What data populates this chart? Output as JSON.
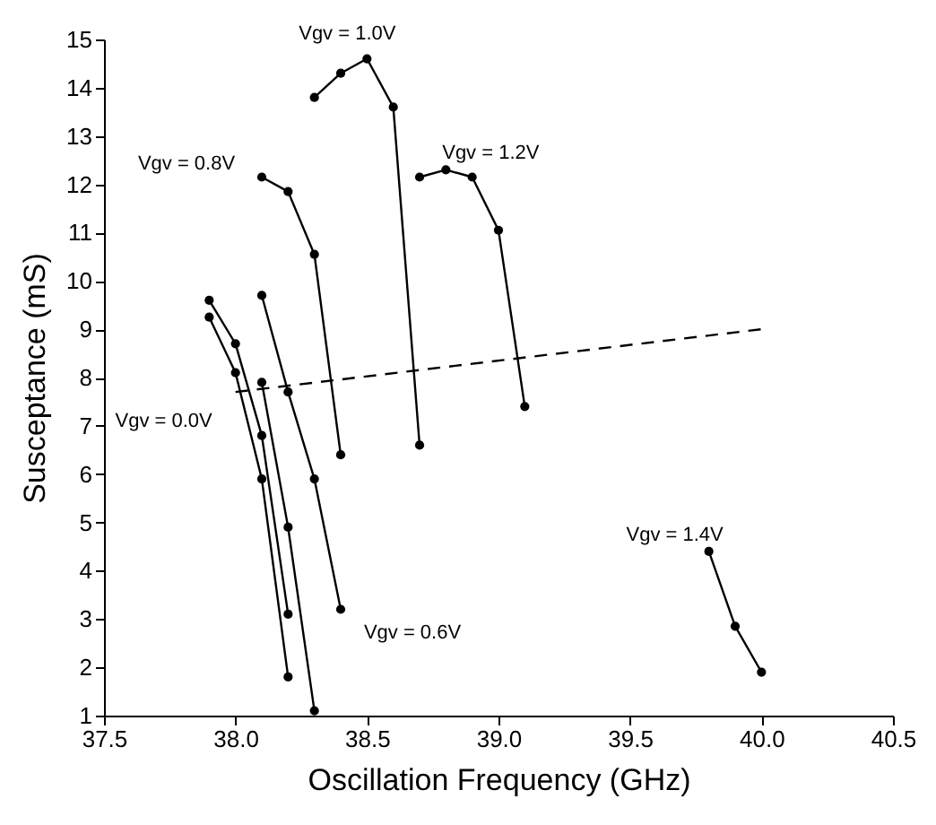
{
  "chart_data": {
    "type": "line",
    "xlabel": "Oscillation Frequency (GHz)",
    "ylabel": "Susceptance (mS)",
    "xlim": [
      37.5,
      40.5
    ],
    "xticks": [
      "37.5",
      {
        "value": 38,
        "label": "38.0"
      },
      "38.5",
      {
        "value": 39,
        "label": "39.0"
      },
      "39.5",
      {
        "value": 40,
        "label": "40.0"
      },
      "40.5"
    ],
    "ylim": [
      1,
      15
    ],
    "yticks": [
      1,
      2,
      3,
      4,
      5,
      6,
      7,
      8,
      9,
      10,
      11,
      12,
      13,
      14,
      15
    ],
    "grid": false,
    "marker": "circle",
    "line_style": "solid",
    "series": [
      {
        "color": "#000000",
        "x": [
          37.9,
          38.0,
          38.1,
          38.2
        ],
        "values": [
          9.6,
          8.7,
          6.8,
          3.1
        ]
      },
      {
        "color": "#000000",
        "x": [
          37.9,
          38.0,
          38.1,
          38.2
        ],
        "values": [
          9.25,
          8.1,
          5.9,
          1.8
        ]
      },
      {
        "color": "#000000",
        "x": [
          38.1,
          38.2,
          38.3
        ],
        "values": [
          7.9,
          4.9,
          1.1
        ]
      },
      {
        "color": "#000000",
        "x": [
          38.1,
          38.2,
          38.3,
          38.4
        ],
        "values": [
          9.7,
          7.7,
          5.9,
          3.2
        ]
      },
      {
        "color": "#000000",
        "x": [
          38.1,
          38.2,
          38.3,
          38.4
        ],
        "values": [
          12.15,
          11.85,
          10.55,
          6.4
        ]
      },
      {
        "color": "#000000",
        "x": [
          38.3,
          38.4,
          38.5,
          38.6,
          38.7
        ],
        "values": [
          13.8,
          14.3,
          14.6,
          13.6,
          6.6
        ]
      },
      {
        "color": "#000000",
        "x": [
          38.7,
          38.8,
          38.9,
          39.0,
          39.1
        ],
        "values": [
          12.15,
          12.3,
          12.15,
          11.05,
          7.4
        ]
      },
      {
        "color": "#000000",
        "x": [
          39.8,
          39.9,
          40.0
        ],
        "values": [
          4.4,
          2.85,
          1.9
        ]
      },
      {
        "color": "#000000",
        "x": [
          38.0,
          40.0
        ],
        "values": [
          7.7,
          9.0
        ],
        "marker": "none",
        "line_style": "dashed"
      }
    ],
    "annotations": [
      {
        "text": "Vgv = 1.0V",
        "x": 38.5,
        "y": 14.6
      },
      {
        "text": "Vgv = 0.8V",
        "x": 38.1,
        "y": 12.15
      },
      {
        "text": "Vgv = 1.2V",
        "x": 38.8,
        "y": 12.3
      },
      {
        "text": "Vgv = 0.0V",
        "x": 38.0,
        "y": 8.1
      },
      {
        "text": "Vgv = 0.6V",
        "x": 38.4,
        "y": 3.2
      },
      {
        "text": "Vgv = 1.4V",
        "x": 39.8,
        "y": 4.4
      }
    ]
  }
}
